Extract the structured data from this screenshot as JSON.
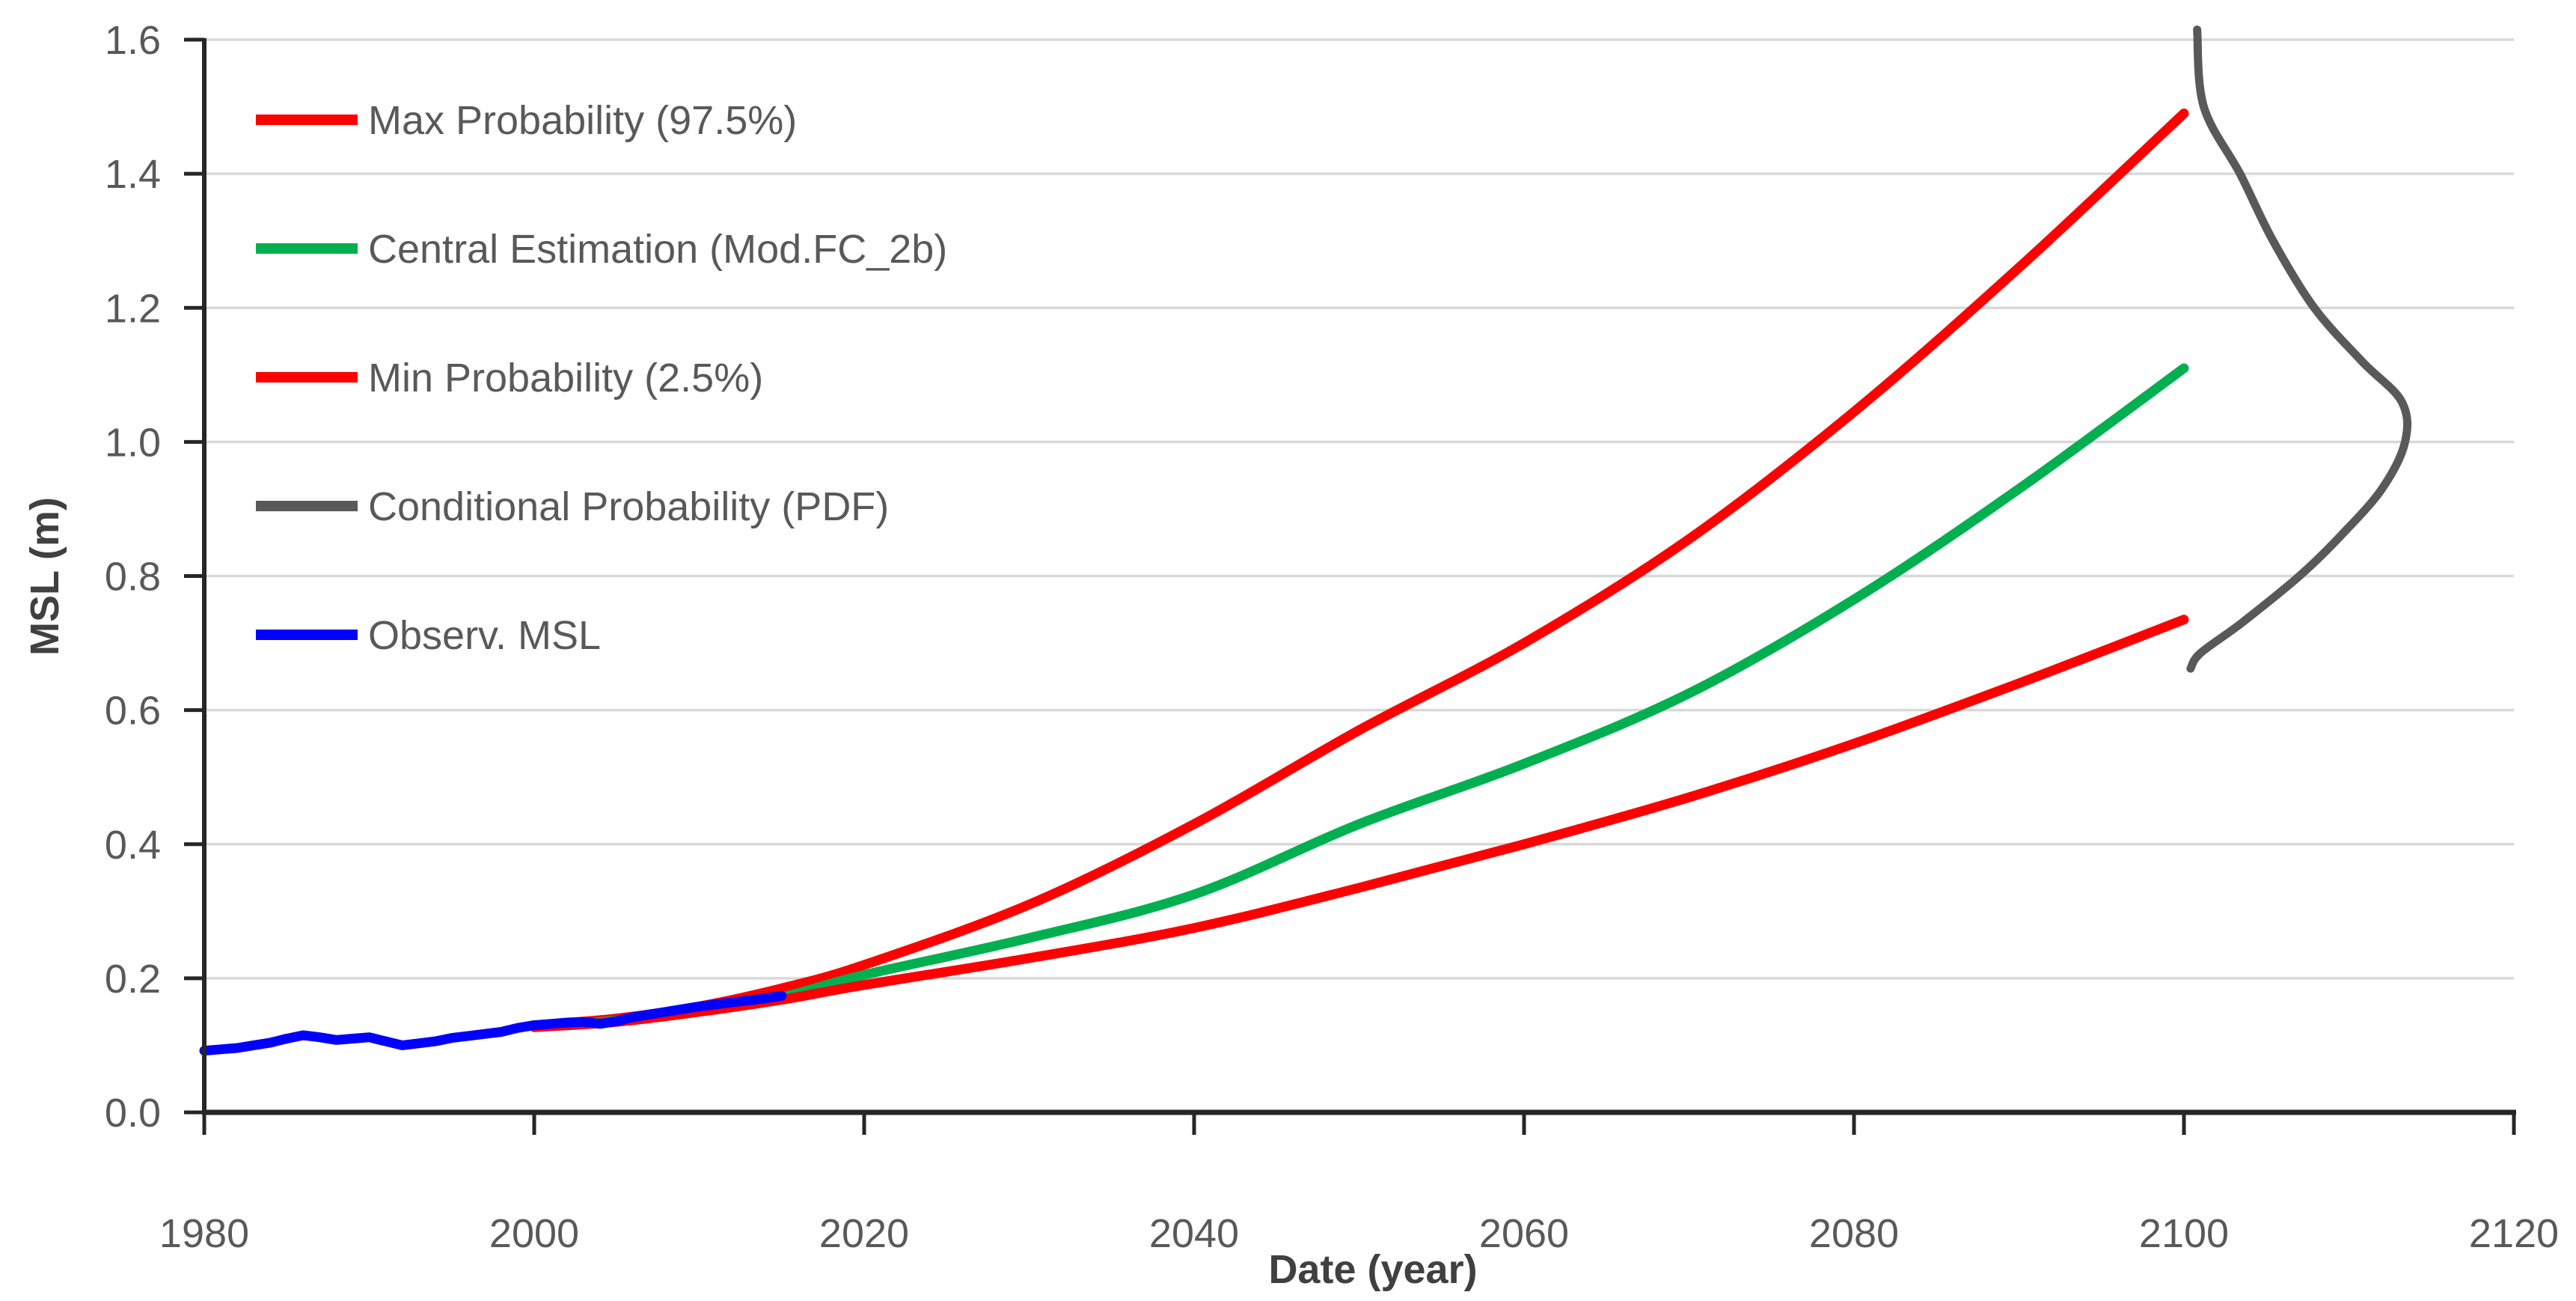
{
  "chart_data": {
    "type": "line",
    "title": "",
    "xlabel": "Date (year)",
    "ylabel": "MSL (m)",
    "xlim": [
      1980,
      2120
    ],
    "ylim": [
      0.0,
      1.6
    ],
    "x_ticks": [
      1980,
      2000,
      2020,
      2040,
      2060,
      2080,
      2100,
      2120
    ],
    "x_tick_labels": [
      "1980",
      "2000",
      "2020",
      "2040",
      "2060",
      "2080",
      "2100",
      "2120"
    ],
    "y_ticks": [
      0.0,
      0.2,
      0.4,
      0.6,
      0.8,
      1.0,
      1.2,
      1.4,
      1.6
    ],
    "y_tick_labels": [
      "0.0",
      "0.2",
      "0.4",
      "0.6",
      "0.8",
      "1.0",
      "1.2",
      "1.4",
      "1.6"
    ],
    "grid": "horizontal-only",
    "legend_position": "upper-left",
    "colors": {
      "max_probability": "#FF0000",
      "central_estimation": "#00B050",
      "min_probability": "#FF0000",
      "conditional_pdf": "#595959",
      "observed_msl": "#0000FF",
      "gridline": "#D9D9D9",
      "axis_line": "#262626",
      "tick_text": "#595959",
      "title_text": "#404040"
    },
    "series": [
      {
        "name": "Max Probability (97.5%)",
        "color": "#FF0000",
        "width": 13,
        "smooth": true,
        "x": [
          2000,
          2005,
          2010,
          2015,
          2020,
          2030,
          2040,
          2050,
          2060,
          2070,
          2080,
          2090,
          2100
        ],
        "y": [
          0.13,
          0.14,
          0.158,
          0.185,
          0.22,
          0.31,
          0.43,
          0.57,
          0.7,
          0.855,
          1.045,
          1.26,
          1.49
        ]
      },
      {
        "name": "Central Estimation (Mod.FC_2b)",
        "color": "#00B050",
        "width": 13,
        "smooth": true,
        "x": [
          2000,
          2005,
          2010,
          2015,
          2020,
          2030,
          2040,
          2050,
          2060,
          2070,
          2080,
          2090,
          2100
        ],
        "y": [
          0.128,
          0.137,
          0.154,
          0.172,
          0.205,
          0.26,
          0.325,
          0.43,
          0.52,
          0.625,
          0.765,
          0.93,
          1.11
        ]
      },
      {
        "name": "Min Probability (2.5%)",
        "color": "#FF0000",
        "width": 13,
        "smooth": true,
        "x": [
          2000,
          2005,
          2010,
          2015,
          2020,
          2030,
          2040,
          2050,
          2060,
          2070,
          2080,
          2090,
          2100
        ],
        "y": [
          0.127,
          0.135,
          0.15,
          0.168,
          0.19,
          0.23,
          0.275,
          0.335,
          0.4,
          0.47,
          0.55,
          0.64,
          0.735
        ]
      },
      {
        "name": "Conditional Probability (PDF)",
        "color": "#595959",
        "width": 11,
        "smooth": true,
        "points": [
          [
            2100.8,
            1.615
          ],
          [
            2101.2,
            1.5
          ],
          [
            2103.4,
            1.4
          ],
          [
            2105.4,
            1.3
          ],
          [
            2107.9,
            1.2
          ],
          [
            2110.8,
            1.12
          ],
          [
            2113.2,
            1.06
          ],
          [
            2113.4,
            1.0
          ],
          [
            2112.0,
            0.93
          ],
          [
            2109.5,
            0.86
          ],
          [
            2107.0,
            0.8
          ],
          [
            2103.5,
            0.73
          ],
          [
            2101.0,
            0.685
          ],
          [
            2100.4,
            0.662
          ]
        ]
      },
      {
        "name": "Observ. MSL",
        "color": "#0000FF",
        "width": 13,
        "smooth": false,
        "x": [
          1980,
          1981,
          1982,
          1983,
          1984,
          1985,
          1986,
          1987,
          1988,
          1989,
          1990,
          1991,
          1992,
          1993,
          1994,
          1995,
          1996,
          1997,
          1998,
          1999,
          2000,
          2001,
          2002,
          2003,
          2004,
          2005,
          2006,
          2007,
          2008,
          2009,
          2010,
          2011,
          2012,
          2013,
          2014,
          2015
        ],
        "y": [
          0.092,
          0.094,
          0.096,
          0.1,
          0.104,
          0.11,
          0.115,
          0.112,
          0.108,
          0.11,
          0.112,
          0.106,
          0.1,
          0.103,
          0.106,
          0.111,
          0.114,
          0.117,
          0.12,
          0.126,
          0.13,
          0.132,
          0.134,
          0.135,
          0.132,
          0.136,
          0.142,
          0.146,
          0.15,
          0.154,
          0.158,
          0.161,
          0.164,
          0.167,
          0.17,
          0.174
        ]
      }
    ],
    "legend": {
      "items": [
        {
          "label": "Max Probability (97.5%)",
          "color": "#FF0000"
        },
        {
          "label": "Central Estimation (Mod.FC_2b)",
          "color": "#00B050"
        },
        {
          "label": "Min Probability (2.5%)",
          "color": "#FF0000"
        },
        {
          "label": "Conditional Probability (PDF)",
          "color": "#595959"
        },
        {
          "label": "Observ. MSL",
          "color": "#0000FF"
        }
      ]
    }
  }
}
